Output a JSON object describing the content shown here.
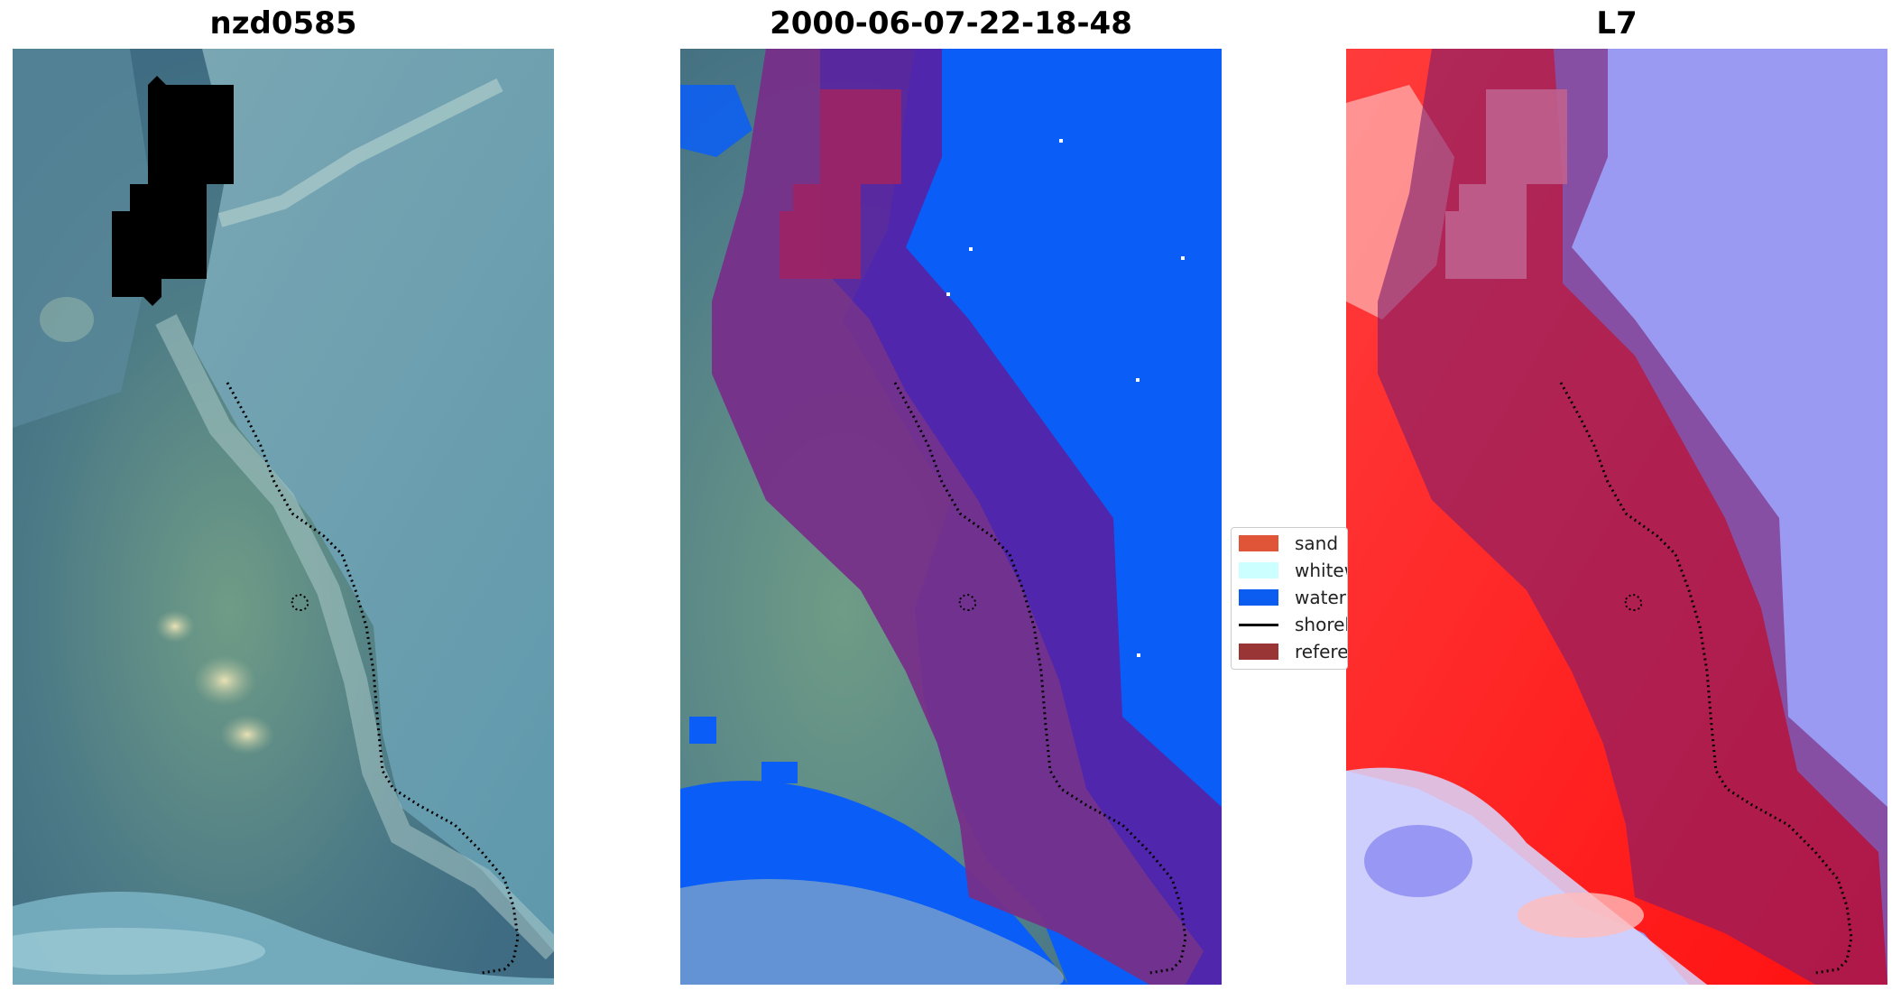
{
  "panels": [
    {
      "id": "rgb",
      "title": "nzd0585"
    },
    {
      "id": "classified",
      "title": "2000-06-07-22-18-48"
    },
    {
      "id": "index",
      "title": "L7"
    }
  ],
  "legend": {
    "items": [
      {
        "label": "sand",
        "color": "#e05537",
        "kind": "patch"
      },
      {
        "label": "whitew",
        "color": "#ccffff",
        "kind": "patch"
      },
      {
        "label": "water",
        "color": "#0b5cf0",
        "kind": "patch"
      },
      {
        "label": "shorel",
        "color": "#000000",
        "kind": "line"
      },
      {
        "label": "refere",
        "color": "#9a3535",
        "kind": "patch"
      }
    ]
  },
  "colors": {
    "water_class": "#0a5ef7",
    "reference_buffer": "#7a1e6e",
    "cloud_mask": "#000000",
    "land_index": "#ff1a1a",
    "water_index": "#8d8df0"
  }
}
